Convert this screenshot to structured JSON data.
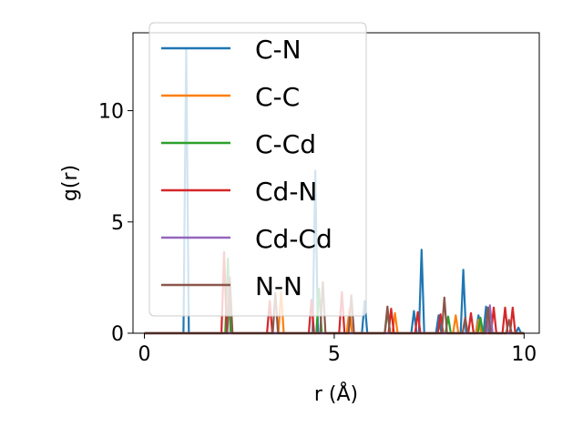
{
  "chart_data": {
    "type": "line",
    "xlabel": "r (Å)",
    "ylabel": "g(r)",
    "xlim": [
      -0.3,
      10.4
    ],
    "ylim": [
      0,
      13.5
    ],
    "xticks": [
      0,
      5,
      10
    ],
    "yticks": [
      0,
      5,
      10
    ],
    "grid": false,
    "legend_position": "upper-left",
    "series": [
      {
        "name": "C-N",
        "color": "#1f77b4",
        "peaks": [
          [
            1.1,
            12.8
          ],
          [
            4.5,
            7.3
          ],
          [
            5.8,
            1.45
          ],
          [
            7.1,
            1.0
          ],
          [
            7.3,
            3.75
          ],
          [
            7.75,
            0.8
          ],
          [
            8.4,
            2.85
          ],
          [
            8.8,
            0.8
          ],
          [
            9.0,
            1.2
          ],
          [
            9.85,
            0.25
          ]
        ]
      },
      {
        "name": "C-C",
        "color": "#ff7f0e",
        "peaks": [
          [
            3.6,
            1.85
          ],
          [
            5.4,
            1.1
          ],
          [
            6.6,
            0.9
          ],
          [
            8.2,
            0.8
          ],
          [
            8.8,
            0.6
          ]
        ]
      },
      {
        "name": "C-Cd",
        "color": "#2ca02c",
        "peaks": [
          [
            2.2,
            3.35
          ],
          [
            4.6,
            2.0
          ],
          [
            6.4,
            1.0
          ],
          [
            8.0,
            0.75
          ],
          [
            8.85,
            0.7
          ]
        ]
      },
      {
        "name": "Cd-N",
        "color": "#d62728",
        "peaks": [
          [
            2.1,
            3.65
          ],
          [
            3.3,
            1.45
          ],
          [
            4.4,
            1.5
          ],
          [
            5.2,
            1.85
          ],
          [
            6.5,
            1.1
          ],
          [
            7.2,
            0.95
          ],
          [
            7.8,
            0.85
          ],
          [
            8.6,
            0.9
          ],
          [
            9.2,
            1.15
          ],
          [
            9.5,
            1.15
          ],
          [
            9.7,
            1.15
          ]
        ]
      },
      {
        "name": "Cd-Cd",
        "color": "#9467bd",
        "peaks": [
          [
            9.1,
            1.25
          ]
        ]
      },
      {
        "name": "N-N",
        "color": "#8c564b",
        "peaks": [
          [
            2.25,
            2.5
          ],
          [
            3.45,
            1.8
          ],
          [
            4.7,
            2.3
          ],
          [
            5.45,
            1.7
          ],
          [
            6.4,
            1.2
          ],
          [
            7.9,
            1.6
          ],
          [
            8.45,
            0.7
          ],
          [
            9.05,
            1.15
          ],
          [
            9.6,
            0.6
          ]
        ]
      }
    ]
  }
}
